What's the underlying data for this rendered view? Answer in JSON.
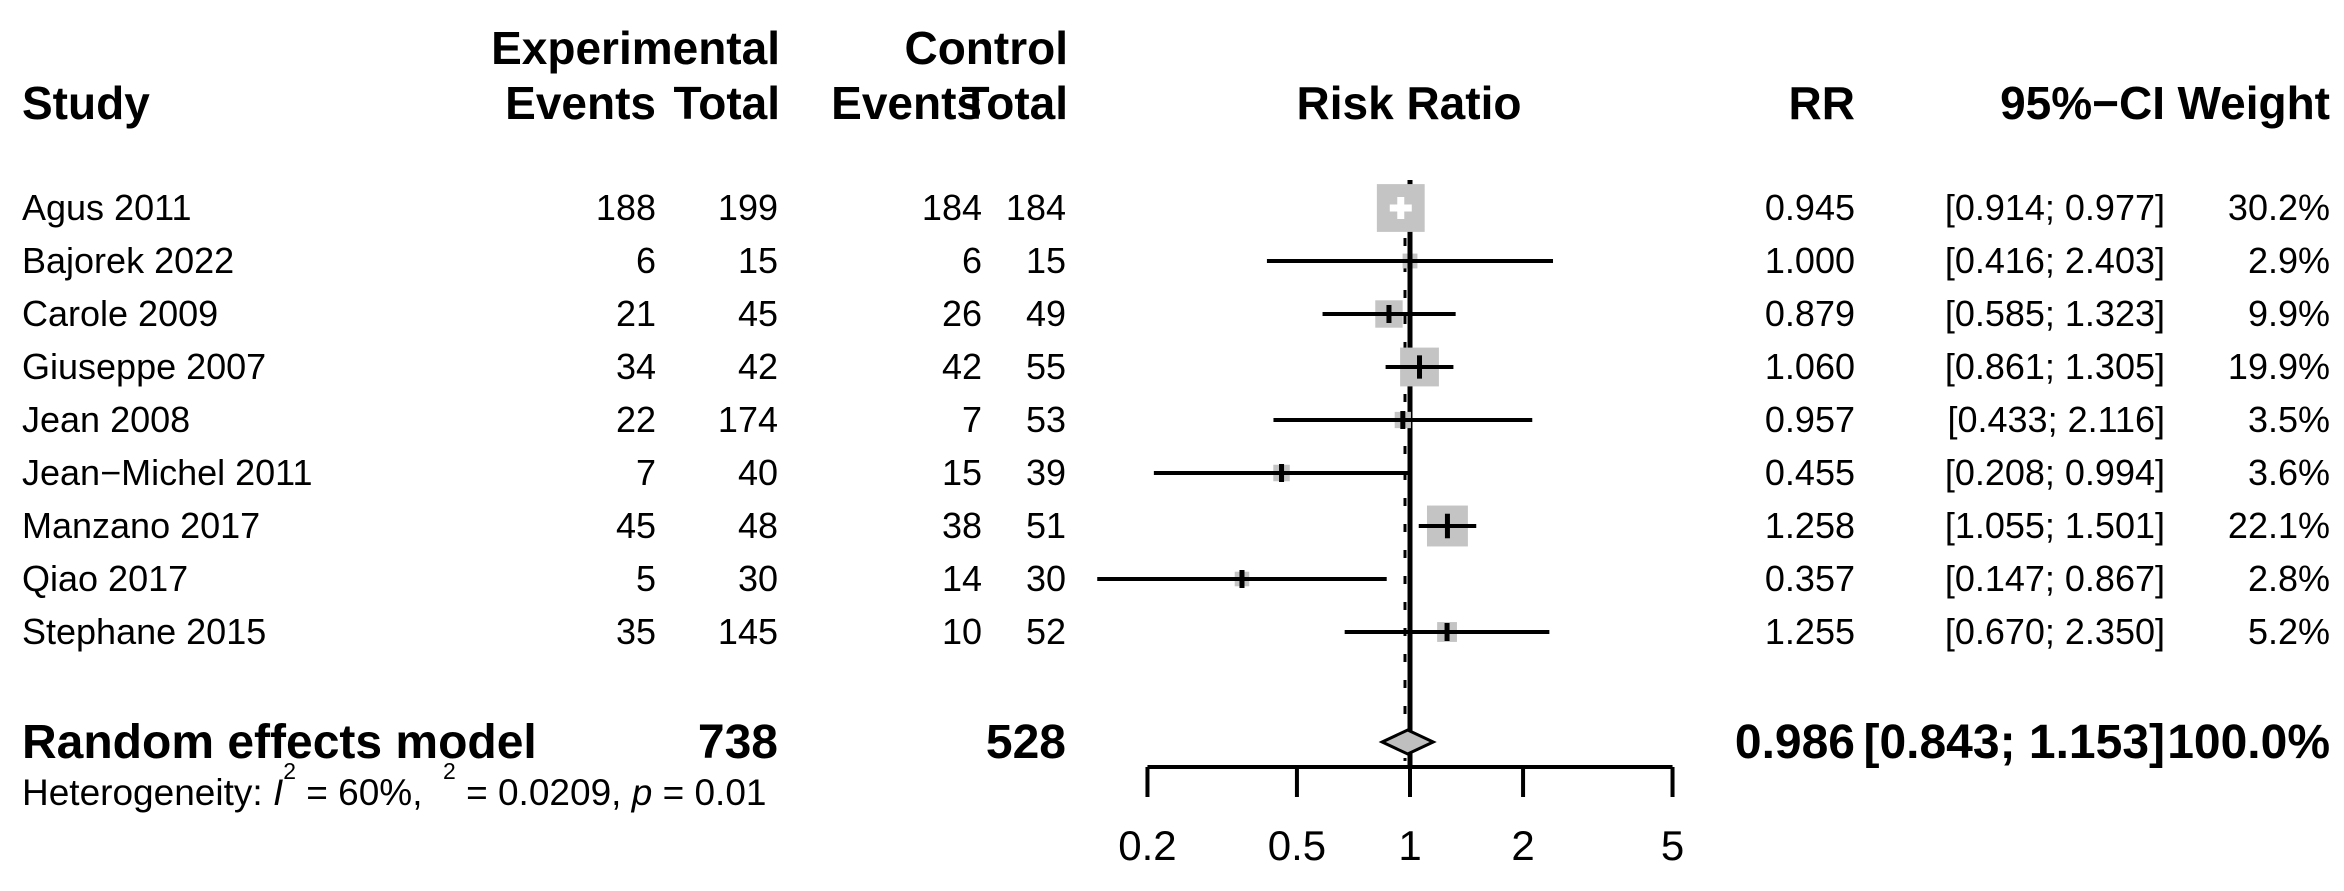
{
  "header": {
    "study": "Study",
    "experimental": "Experimental",
    "control": "Control",
    "exp_events": "Events",
    "exp_total": "Total",
    "ctrl_events": "Events",
    "ctrl_total": "Total",
    "risk_ratio": "Risk Ratio",
    "rr": "RR",
    "ci": "95%−CI",
    "weight": "Weight"
  },
  "colors": {
    "square_fill": "#c4c4c4",
    "diamond_fill": "#bfbfbf",
    "line": "#000000"
  },
  "chart_data": {
    "type": "forest",
    "x_scale": "log",
    "x_axis_ticks": [
      {
        "label": "0.2",
        "value": 0.2
      },
      {
        "label": "0.5",
        "value": 0.5
      },
      {
        "label": "1",
        "value": 1
      },
      {
        "label": "2",
        "value": 2
      },
      {
        "label": "5",
        "value": 5
      }
    ],
    "reference_value": 1,
    "studies": [
      {
        "study": "Agus 2011",
        "exp_events": "188",
        "exp_total": "199",
        "ctrl_events": "184",
        "ctrl_total": "184",
        "rr": 0.945,
        "ci_low": 0.914,
        "ci_high": 0.977,
        "rr_label": "0.945",
        "ci_label": "[0.914; 0.977]",
        "weight": 30.2,
        "weight_label": "30.2%"
      },
      {
        "study": "Bajorek 2022",
        "exp_events": "6",
        "exp_total": "15",
        "ctrl_events": "6",
        "ctrl_total": "15",
        "rr": 1.0,
        "ci_low": 0.416,
        "ci_high": 2.403,
        "rr_label": "1.000",
        "ci_label": "[0.416; 2.403]",
        "weight": 2.9,
        "weight_label": "2.9%"
      },
      {
        "study": "Carole 2009",
        "exp_events": "21",
        "exp_total": "45",
        "ctrl_events": "26",
        "ctrl_total": "49",
        "rr": 0.879,
        "ci_low": 0.585,
        "ci_high": 1.323,
        "rr_label": "0.879",
        "ci_label": "[0.585; 1.323]",
        "weight": 9.9,
        "weight_label": "9.9%"
      },
      {
        "study": "Giuseppe 2007",
        "exp_events": "34",
        "exp_total": "42",
        "ctrl_events": "42",
        "ctrl_total": "55",
        "rr": 1.06,
        "ci_low": 0.861,
        "ci_high": 1.305,
        "rr_label": "1.060",
        "ci_label": "[0.861; 1.305]",
        "weight": 19.9,
        "weight_label": "19.9%"
      },
      {
        "study": "Jean 2008",
        "exp_events": "22",
        "exp_total": "174",
        "ctrl_events": "7",
        "ctrl_total": "53",
        "rr": 0.957,
        "ci_low": 0.433,
        "ci_high": 2.116,
        "rr_label": "0.957",
        "ci_label": "[0.433; 2.116]",
        "weight": 3.5,
        "weight_label": "3.5%"
      },
      {
        "study": "Jean−Michel 2011",
        "exp_events": "7",
        "exp_total": "40",
        "ctrl_events": "15",
        "ctrl_total": "39",
        "rr": 0.455,
        "ci_low": 0.208,
        "ci_high": 0.994,
        "rr_label": "0.455",
        "ci_label": "[0.208; 0.994]",
        "weight": 3.6,
        "weight_label": "3.6%"
      },
      {
        "study": "Manzano 2017",
        "exp_events": "45",
        "exp_total": "48",
        "ctrl_events": "38",
        "ctrl_total": "51",
        "rr": 1.258,
        "ci_low": 1.055,
        "ci_high": 1.501,
        "rr_label": "1.258",
        "ci_label": "[1.055; 1.501]",
        "weight": 22.1,
        "weight_label": "22.1%"
      },
      {
        "study": "Qiao 2017",
        "exp_events": "5",
        "exp_total": "30",
        "ctrl_events": "14",
        "ctrl_total": "30",
        "rr": 0.357,
        "ci_low": 0.147,
        "ci_high": 0.867,
        "rr_label": "0.357",
        "ci_label": "[0.147; 0.867]",
        "weight": 2.8,
        "weight_label": "2.8%"
      },
      {
        "study": "Stephane 2015",
        "exp_events": "35",
        "exp_total": "145",
        "ctrl_events": "10",
        "ctrl_total": "52",
        "rr": 1.255,
        "ci_low": 0.67,
        "ci_high": 2.35,
        "rr_label": "1.255",
        "ci_label": "[0.670; 2.350]",
        "weight": 5.2,
        "weight_label": "5.2%"
      }
    ],
    "summary": {
      "label": "Random effects model",
      "exp_total": "738",
      "ctrl_total": "528",
      "rr": 0.986,
      "ci_low": 0.843,
      "ci_high": 1.153,
      "rr_label": "0.986",
      "ci_label": "[0.843; 1.153]",
      "weight_label": "100.0%"
    },
    "heterogeneity": {
      "prefix": "Heterogeneity: ",
      "i_sym": "I",
      "i_sup": "2",
      "i_val": " = 60%, ",
      "gap": " ",
      "tau_sup": "2",
      "tau_val": " = 0.0209, ",
      "p_sym": "p",
      "p_val": " = 0.01"
    }
  }
}
